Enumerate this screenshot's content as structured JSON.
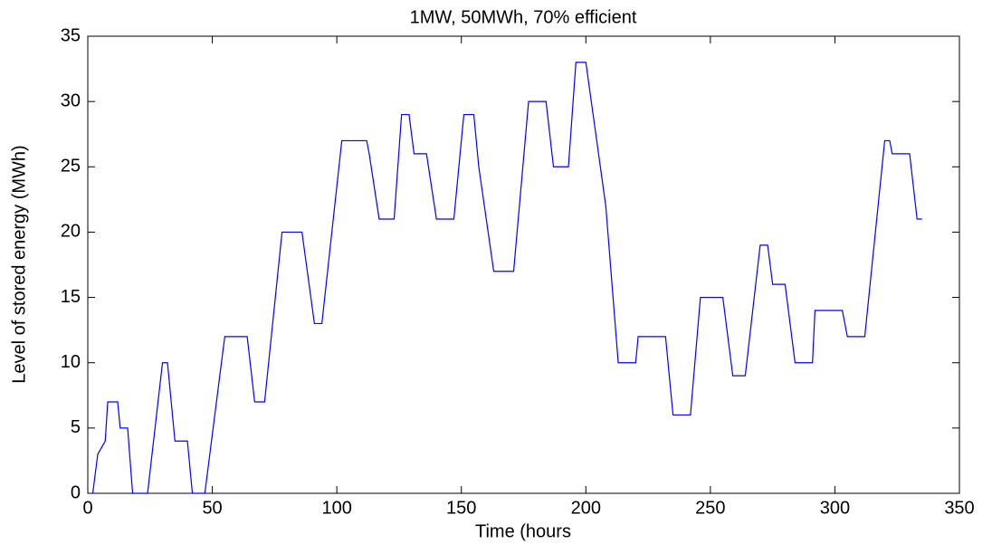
{
  "chart_data": {
    "type": "line",
    "title": "1MW, 50MWh, 70% efficient",
    "xlabel": "Time (hours",
    "ylabel": "Level of stored energy (MWh)",
    "x": [
      2,
      4,
      7,
      8,
      12,
      13,
      16,
      18,
      24,
      30,
      32,
      35,
      40,
      42,
      47,
      55,
      64,
      67,
      71,
      78,
      86,
      91,
      94,
      102,
      112,
      113,
      117,
      123,
      126,
      129,
      131,
      136,
      140,
      147,
      151,
      155,
      157,
      163,
      171,
      177,
      184,
      187,
      193,
      196,
      200,
      208,
      213,
      220,
      221,
      232,
      235,
      242,
      246,
      255,
      259,
      264,
      270,
      273,
      275,
      280,
      284,
      291,
      292,
      303,
      305,
      312,
      320,
      322,
      323,
      330,
      333,
      335
    ],
    "values": [
      0,
      3,
      4,
      7,
      7,
      5,
      5,
      0,
      0,
      10,
      10,
      4,
      4,
      0,
      0,
      12,
      12,
      7,
      7,
      20,
      20,
      13,
      13,
      27,
      27,
      26,
      21,
      21,
      29,
      29,
      26,
      26,
      21,
      21,
      29,
      29,
      25,
      17,
      17,
      30,
      30,
      25,
      25,
      33,
      33,
      22,
      10,
      10,
      12,
      12,
      6,
      6,
      15,
      15,
      9,
      9,
      19,
      19,
      16,
      16,
      10,
      10,
      14,
      14,
      12,
      12,
      27,
      27,
      26,
      26,
      21,
      21
    ],
    "color": "#0000ff",
    "xlim": [
      0,
      350
    ],
    "xticks": [
      0,
      50,
      100,
      150,
      200,
      250,
      300,
      350
    ],
    "ylim": [
      0,
      35
    ],
    "yticks": [
      0,
      5,
      10,
      15,
      20,
      25,
      30,
      35
    ]
  }
}
